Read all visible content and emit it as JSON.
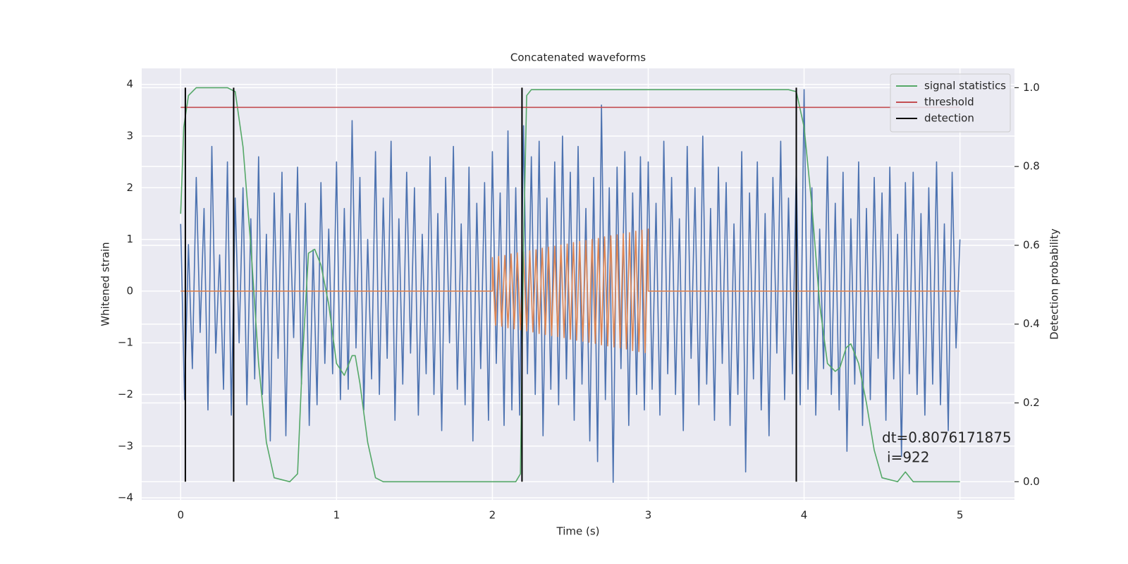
{
  "chart_data": {
    "type": "line",
    "title": "Concatenated waveforms",
    "xlabel": "Time (s)",
    "ylabel": "Whitened strain",
    "y2label": "Detection probability",
    "xlim": [
      -0.25,
      5.35
    ],
    "ylim": [
      -4.04,
      4.31
    ],
    "y2lim": [
      -0.046,
      1.049
    ],
    "xticks": [
      0,
      1,
      2,
      3,
      4,
      5
    ],
    "yticks": [
      {
        "value": -4,
        "label": "−4"
      },
      {
        "value": -3,
        "label": "−3"
      },
      {
        "value": -2,
        "label": "−2"
      },
      {
        "value": -1,
        "label": "−1"
      },
      0,
      1,
      2,
      3,
      4
    ],
    "y2ticks": [
      {
        "value": 0,
        "label": "0.0"
      },
      0.2,
      0.4,
      0.6,
      0.8,
      {
        "value": 1,
        "label": "1.0"
      }
    ],
    "grid": true,
    "legend": "upper right",
    "annotation": [
      "dt=0.8076171875",
      "i=922"
    ],
    "series": [
      {
        "color": "#4c72b0",
        "x": [
          0,
          0.025,
          0.05,
          0.075,
          0.1,
          0.125,
          0.15,
          0.175,
          0.2,
          0.225,
          0.25,
          0.275,
          0.3,
          0.325,
          0.35,
          0.375,
          0.4,
          0.425,
          0.45,
          0.475,
          0.5,
          0.525,
          0.55,
          0.575,
          0.6,
          0.625,
          0.65,
          0.675,
          0.7,
          0.725,
          0.75,
          0.775,
          0.8,
          0.825,
          0.85,
          0.875,
          0.9,
          0.925,
          0.95,
          0.975,
          1,
          1.025,
          1.05,
          1.075,
          1.1,
          1.125,
          1.15,
          1.175,
          1.2,
          1.225,
          1.25,
          1.275,
          1.3,
          1.325,
          1.35,
          1.375,
          1.4,
          1.425,
          1.45,
          1.475,
          1.5,
          1.525,
          1.55,
          1.575,
          1.6,
          1.625,
          1.65,
          1.675,
          1.7,
          1.725,
          1.75,
          1.775,
          1.8,
          1.825,
          1.85,
          1.875,
          1.9,
          1.925,
          1.95,
          1.975,
          2,
          2.025,
          2.05,
          2.075,
          2.1,
          2.125,
          2.15,
          2.175,
          2.2,
          2.225,
          2.25,
          2.275,
          2.3,
          2.325,
          2.35,
          2.375,
          2.4,
          2.425,
          2.45,
          2.475,
          2.5,
          2.525,
          2.55,
          2.575,
          2.6,
          2.625,
          2.65,
          2.675,
          2.7,
          2.725,
          2.75,
          2.775,
          2.8,
          2.825,
          2.85,
          2.875,
          2.9,
          2.925,
          2.95,
          2.975,
          3,
          3.025,
          3.05,
          3.075,
          3.1,
          3.125,
          3.15,
          3.175,
          3.2,
          3.225,
          3.25,
          3.275,
          3.3,
          3.325,
          3.35,
          3.375,
          3.4,
          3.425,
          3.45,
          3.475,
          3.5,
          3.525,
          3.55,
          3.575,
          3.6,
          3.625,
          3.65,
          3.675,
          3.7,
          3.725,
          3.75,
          3.775,
          3.8,
          3.825,
          3.85,
          3.875,
          3.9,
          3.925,
          3.95,
          3.975,
          4,
          4.025,
          4.05,
          4.075,
          4.1,
          4.125,
          4.15,
          4.175,
          4.2,
          4.225,
          4.25,
          4.275,
          4.3,
          4.325,
          4.35,
          4.375,
          4.4,
          4.425,
          4.45,
          4.475,
          4.5,
          4.525,
          4.55,
          4.575,
          4.6,
          4.625,
          4.65,
          4.675,
          4.7,
          4.725,
          4.75,
          4.775,
          4.8,
          4.825,
          4.85,
          4.875,
          4.9,
          4.925,
          4.95,
          4.975,
          5
        ],
        "values": [
          1.3,
          -2.1,
          0.9,
          -1.5,
          2.2,
          -0.8,
          1.6,
          -2.3,
          2.8,
          -1.2,
          0.7,
          -1.9,
          2.5,
          -2.4,
          1.8,
          -1.0,
          2.0,
          -2.2,
          1.4,
          -1.7,
          2.6,
          -2.0,
          1.1,
          -2.9,
          1.9,
          -1.3,
          2.3,
          -2.8,
          1.5,
          -0.9,
          2.4,
          -1.8,
          1.7,
          -2.6,
          0.8,
          -2.2,
          2.1,
          -1.4,
          1.2,
          -1.6,
          2.5,
          -2.1,
          1.6,
          -1.9,
          3.3,
          -1.1,
          2.2,
          -2.3,
          1.0,
          -1.7,
          2.7,
          -2.0,
          1.8,
          -1.3,
          2.9,
          -2.5,
          1.4,
          -1.8,
          2.3,
          -1.2,
          2.0,
          -2.4,
          1.1,
          -1.6,
          2.6,
          -2.0,
          1.5,
          -2.7,
          2.2,
          -1.0,
          2.8,
          -1.9,
          1.3,
          -2.2,
          2.4,
          -2.9,
          1.7,
          -1.5,
          2.1,
          -2.5,
          2.7,
          -1.4,
          1.9,
          -2.6,
          3.1,
          -2.3,
          2.0,
          -2.4,
          3.2,
          -1.6,
          2.6,
          -2.0,
          2.9,
          -2.8,
          1.8,
          -1.9,
          2.5,
          -2.2,
          3.0,
          -1.7,
          2.3,
          -2.5,
          2.8,
          -1.8,
          1.6,
          -2.9,
          2.2,
          -3.3,
          3.6,
          -2.1,
          2.0,
          -3.7,
          2.4,
          -1.5,
          2.7,
          -2.6,
          1.9,
          -2.0,
          2.6,
          -2.3,
          2.5,
          -1.9,
          1.7,
          -2.4,
          2.9,
          -1.6,
          2.2,
          -2.0,
          1.4,
          -2.7,
          2.8,
          -1.3,
          2.0,
          -2.2,
          3.0,
          -1.8,
          1.6,
          -2.5,
          2.4,
          -1.4,
          2.1,
          -2.6,
          1.3,
          -2.0,
          2.7,
          -3.5,
          1.9,
          -1.7,
          2.5,
          -2.3,
          1.5,
          -2.8,
          2.2,
          -1.2,
          2.9,
          -2.1,
          1.8,
          -1.6,
          2.4,
          -2.2,
          3.9,
          -1.9,
          2.0,
          -2.4,
          1.2,
          -1.5,
          2.6,
          -2.0,
          1.7,
          -2.3,
          2.3,
          -3.1,
          1.4,
          -1.8,
          2.5,
          -2.6,
          1.6,
          -2.1,
          2.2,
          -1.3,
          1.9,
          -2.5,
          2.4,
          -1.7,
          1.1,
          -3.2,
          2.1,
          -1.6,
          2.3,
          -2.0,
          1.5,
          -2.4,
          2.0,
          -1.8,
          2.5,
          -2.2,
          1.3,
          -2.7,
          2.3,
          -1.1,
          1.0
        ]
      },
      {
        "color": "#dd8452",
        "x": [
          0,
          2,
          2,
          2.02,
          2.04,
          2.06,
          2.08,
          2.1,
          2.12,
          2.14,
          2.16,
          2.18,
          2.2,
          2.22,
          2.24,
          2.26,
          2.28,
          2.3,
          2.32,
          2.34,
          2.36,
          2.38,
          2.4,
          2.42,
          2.44,
          2.46,
          2.48,
          2.5,
          2.52,
          2.54,
          2.56,
          2.58,
          2.6,
          2.62,
          2.64,
          2.66,
          2.68,
          2.7,
          2.72,
          2.74,
          2.76,
          2.78,
          2.8,
          2.82,
          2.84,
          2.86,
          2.88,
          2.9,
          2.92,
          2.94,
          2.96,
          2.98,
          3,
          3,
          5
        ],
        "values": [
          0,
          0,
          0.65,
          -0.66,
          0.67,
          -0.68,
          0.69,
          -0.71,
          0.72,
          -0.73,
          0.74,
          -0.75,
          0.76,
          -0.77,
          0.78,
          -0.79,
          0.8,
          -0.82,
          0.83,
          -0.84,
          0.85,
          -0.86,
          0.87,
          -0.88,
          0.89,
          -0.9,
          0.91,
          -0.93,
          0.94,
          -0.95,
          0.96,
          -0.97,
          0.98,
          -0.99,
          1.0,
          -1.01,
          1.02,
          -1.04,
          1.05,
          -1.06,
          1.07,
          -1.08,
          1.09,
          -1.1,
          1.11,
          -1.12,
          1.13,
          -1.15,
          1.16,
          -1.17,
          1.18,
          -1.19,
          1.2,
          0,
          0
        ]
      },
      {
        "name": "signal statistics",
        "color": "#55a868",
        "axis": "y2",
        "x": [
          0,
          0.02,
          0.05,
          0.1,
          0.2,
          0.3,
          0.35,
          0.4,
          0.45,
          0.5,
          0.55,
          0.6,
          0.7,
          0.75,
          0.78,
          0.82,
          0.86,
          0.9,
          0.95,
          1.0,
          1.05,
          1.1,
          1.12,
          1.15,
          1.2,
          1.25,
          1.3,
          1.5,
          2.0,
          2.15,
          2.18,
          2.2,
          2.22,
          2.25,
          2.3,
          3.0,
          3.9,
          3.95,
          4.0,
          4.05,
          4.1,
          4.15,
          4.2,
          4.23,
          4.27,
          4.3,
          4.35,
          4.4,
          4.45,
          4.5,
          4.6,
          4.65,
          4.7,
          4.8,
          5.0
        ],
        "values": [
          0.68,
          0.9,
          0.98,
          1.0,
          1.0,
          1.0,
          0.99,
          0.85,
          0.6,
          0.3,
          0.1,
          0.01,
          0.0,
          0.02,
          0.3,
          0.58,
          0.59,
          0.55,
          0.45,
          0.3,
          0.27,
          0.32,
          0.32,
          0.25,
          0.1,
          0.01,
          0.0,
          0.0,
          0.0,
          0.0,
          0.02,
          0.6,
          0.98,
          0.995,
          0.995,
          0.995,
          0.995,
          0.99,
          0.9,
          0.7,
          0.45,
          0.3,
          0.28,
          0.29,
          0.34,
          0.35,
          0.3,
          0.2,
          0.08,
          0.01,
          0.0,
          0.025,
          0.0,
          0.0,
          0.0
        ]
      },
      {
        "name": "threshold",
        "color": "#c44e52",
        "axis": "y2",
        "x": [
          0,
          5
        ],
        "values": [
          0.95,
          0.95
        ]
      },
      {
        "name": "detection",
        "color": "#000000",
        "axis": "y2",
        "kind": "vlines",
        "x": [
          0.03,
          0.34,
          2.19,
          3.95
        ],
        "ymin": 0,
        "ymax": 1
      }
    ]
  }
}
